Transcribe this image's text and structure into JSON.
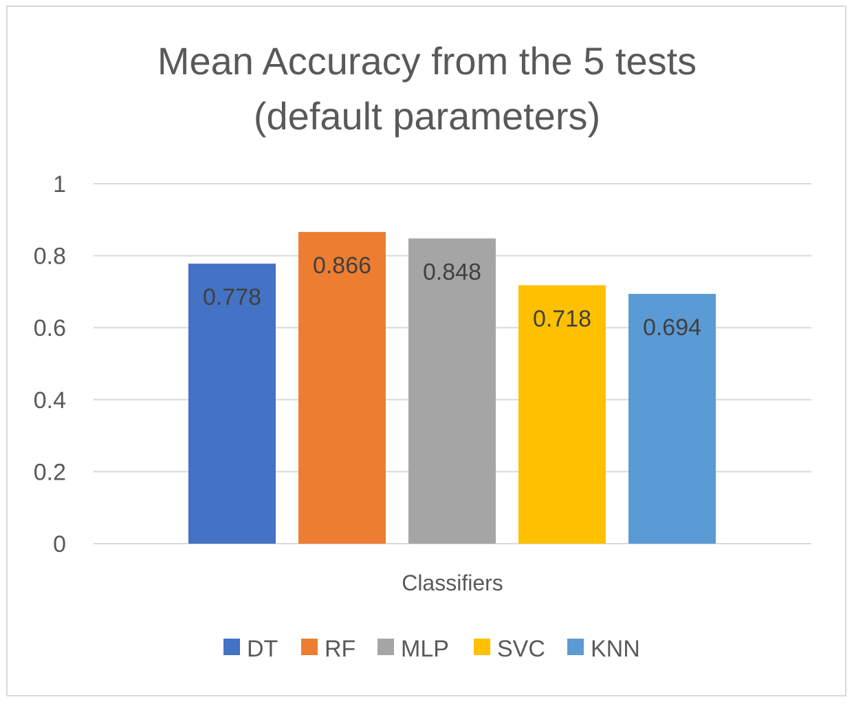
{
  "chart_data": {
    "type": "bar",
    "title": "Mean Accuracy from the 5 tests",
    "subtitle": "(default parameters)",
    "xlabel": "Classifiers",
    "ylabel": "",
    "ylim": [
      0,
      1
    ],
    "yticks": [
      "0",
      "0.2",
      "0.4",
      "0.6",
      "0.8",
      "1"
    ],
    "grid": true,
    "legend_position": "bottom",
    "categories": [
      ""
    ],
    "series": [
      {
        "name": "DT",
        "values": [
          0.778
        ],
        "label": "0.778",
        "color": "#4472C4"
      },
      {
        "name": "RF",
        "values": [
          0.866
        ],
        "label": "0.866",
        "color": "#ED7D31"
      },
      {
        "name": "MLP",
        "values": [
          0.848
        ],
        "label": "0.848",
        "color": "#A5A5A5"
      },
      {
        "name": "SVC",
        "values": [
          0.718
        ],
        "label": "0.718",
        "color": "#FFC000"
      },
      {
        "name": "KNN",
        "values": [
          0.694
        ],
        "label": "0.694",
        "color": "#5B9BD5"
      }
    ]
  }
}
